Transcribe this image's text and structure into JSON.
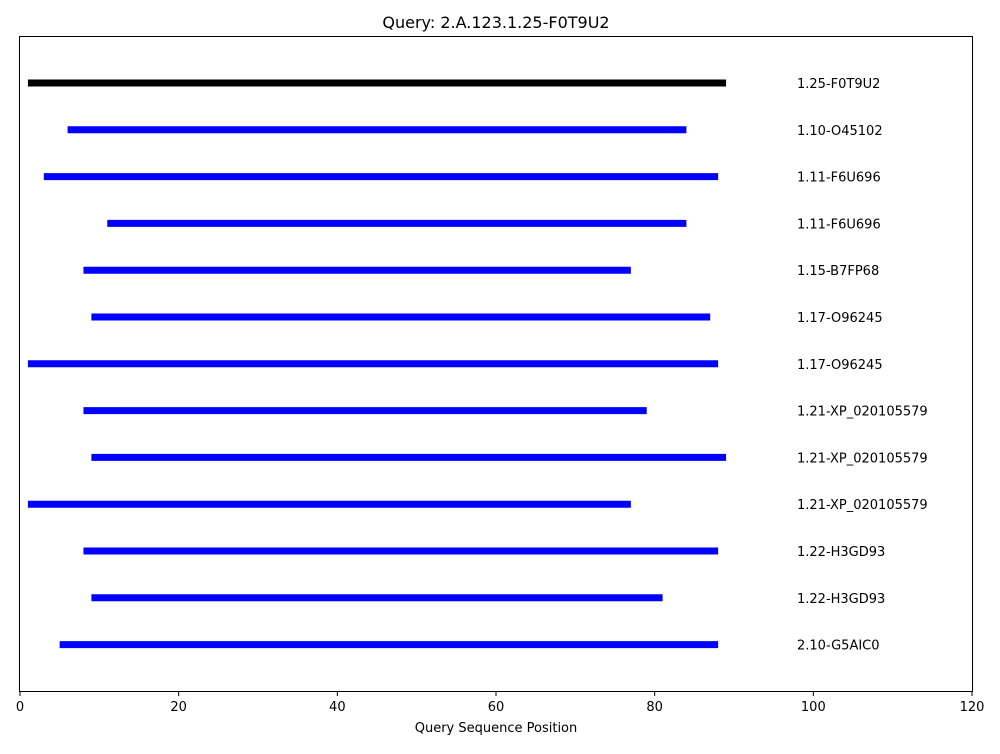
{
  "chart_data": {
    "type": "bar",
    "orientation": "horizontal-range",
    "title": "Query: 2.A.123.1.25-F0T9U2",
    "xlabel": "Query Sequence Position",
    "ylabel": "",
    "xlim": [
      0,
      120
    ],
    "xticks": [
      0,
      20,
      40,
      60,
      80,
      100,
      120
    ],
    "grid": false,
    "legend": "none",
    "rows": [
      {
        "label": "1.25-F0T9U2",
        "start": 1,
        "end": 89,
        "color": "#000000"
      },
      {
        "label": "1.10-O45102",
        "start": 6,
        "end": 84,
        "color": "#0000ff"
      },
      {
        "label": "1.11-F6U696",
        "start": 3,
        "end": 88,
        "color": "#0000ff"
      },
      {
        "label": "1.11-F6U696",
        "start": 11,
        "end": 84,
        "color": "#0000ff"
      },
      {
        "label": "1.15-B7FP68",
        "start": 8,
        "end": 77,
        "color": "#0000ff"
      },
      {
        "label": "1.17-O96245",
        "start": 9,
        "end": 87,
        "color": "#0000ff"
      },
      {
        "label": "1.17-O96245",
        "start": 1,
        "end": 88,
        "color": "#0000ff"
      },
      {
        "label": "1.21-XP_020105579",
        "start": 8,
        "end": 79,
        "color": "#0000ff"
      },
      {
        "label": "1.21-XP_020105579",
        "start": 9,
        "end": 89,
        "color": "#0000ff"
      },
      {
        "label": "1.21-XP_020105579",
        "start": 1,
        "end": 77,
        "color": "#0000ff"
      },
      {
        "label": "1.22-H3GD93",
        "start": 8,
        "end": 88,
        "color": "#0000ff"
      },
      {
        "label": "1.22-H3GD93",
        "start": 9,
        "end": 81,
        "color": "#0000ff"
      },
      {
        "label": "2.10-G5AIC0",
        "start": 5,
        "end": 88,
        "color": "#0000ff"
      }
    ]
  }
}
